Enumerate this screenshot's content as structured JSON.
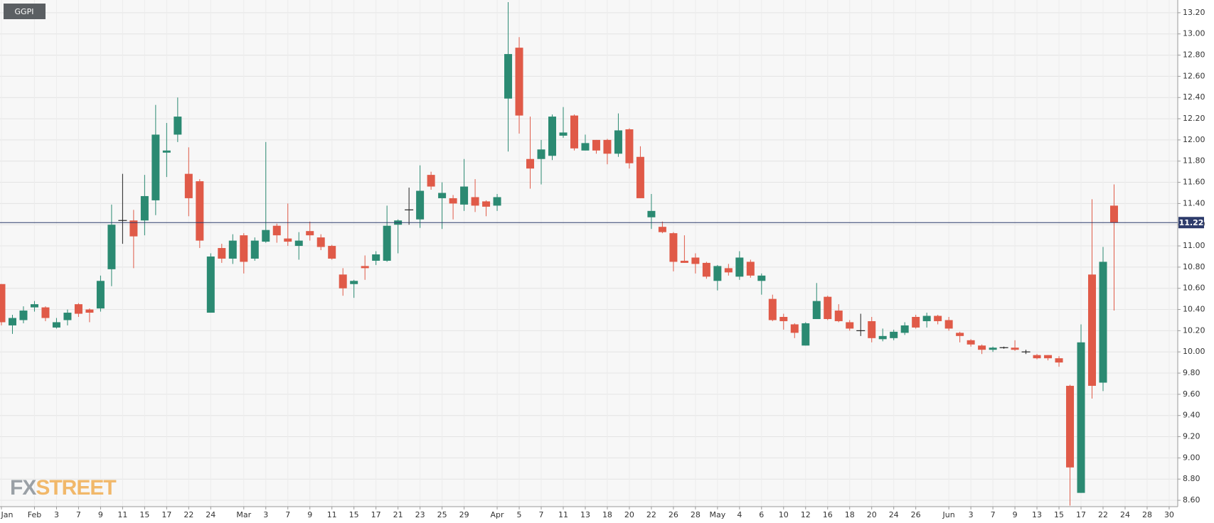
{
  "chart_data": {
    "type": "candlestick",
    "symbol": "GGPI",
    "watermark": [
      "FX",
      "STREET"
    ],
    "categories": [
      "Jan",
      null,
      null,
      "Feb",
      null,
      "3",
      null,
      "7",
      null,
      "9",
      null,
      "11",
      null,
      "15",
      null,
      "17",
      null,
      "22",
      null,
      "24",
      null,
      null,
      "Mar",
      null,
      "3",
      null,
      "7",
      null,
      "9",
      null,
      "11",
      null,
      "15",
      null,
      "17",
      null,
      "21",
      null,
      "23",
      null,
      "25",
      null,
      "29",
      null,
      null,
      "Apr",
      null,
      "5",
      null,
      "7",
      null,
      "11",
      null,
      "13",
      null,
      "18",
      null,
      "20",
      null,
      "22",
      null,
      "26",
      null,
      "28",
      null,
      "May",
      null,
      "4",
      null,
      "6",
      null,
      "10",
      null,
      "12",
      null,
      "16",
      null,
      "18",
      null,
      "20",
      null,
      "24",
      null,
      "26",
      null,
      null,
      "Jun",
      null,
      "3",
      null,
      "7",
      null,
      "9",
      null,
      "13",
      null,
      "15",
      null,
      "17",
      null,
      "22",
      null,
      "24",
      null,
      "28",
      null,
      "30"
    ],
    "open": [
      10.64,
      10.25,
      10.3,
      10.42,
      10.42,
      10.23,
      10.3,
      10.45,
      10.4,
      10.41,
      10.78,
      11.24,
      11.24,
      11.24,
      11.43,
      11.88,
      12.05,
      11.68,
      11.61,
      10.37,
      10.98,
      10.88,
      11.1,
      10.88,
      11.04,
      11.19,
      11.07,
      11.0,
      11.14,
      11.08,
      11.0,
      10.73,
      10.64,
      10.81,
      10.86,
      10.86,
      11.2,
      11.34,
      11.25,
      11.67,
      11.45,
      11.45,
      11.39,
      11.46,
      11.42,
      11.38,
      12.39,
      12.87,
      11.82,
      11.82,
      11.85,
      12.04,
      12.23,
      11.9,
      12.0,
      12.0,
      11.87,
      12.1,
      11.84,
      11.27,
      11.18,
      11.12,
      10.86,
      10.89,
      10.84,
      10.67,
      10.79,
      10.71,
      10.85,
      10.67,
      10.5,
      10.33,
      10.26,
      10.06,
      10.31,
      10.52,
      10.39,
      10.28,
      10.2,
      10.29,
      10.12,
      10.13,
      10.18,
      10.33,
      10.29,
      10.34,
      10.3,
      10.18,
      10.11,
      10.06,
      10.02,
      10.04,
      10.04,
      10.0,
      9.97,
      9.97,
      9.94,
      9.68,
      8.67,
      10.73,
      9.71,
      11.38,
      null,
      null,
      null,
      null,
      null
    ],
    "high": [
      10.64,
      10.35,
      10.43,
      10.48,
      10.43,
      10.32,
      10.4,
      10.46,
      10.41,
      10.72,
      11.39,
      11.68,
      11.34,
      11.67,
      12.33,
      12.16,
      12.4,
      11.93,
      11.63,
      10.93,
      11.02,
      11.11,
      11.12,
      11.08,
      11.98,
      11.21,
      11.4,
      11.13,
      11.23,
      11.11,
      11.01,
      10.79,
      10.68,
      10.91,
      10.95,
      11.38,
      11.25,
      11.55,
      11.76,
      11.7,
      11.6,
      11.48,
      11.82,
      11.63,
      11.43,
      11.49,
      13.3,
      12.97,
      12.22,
      12.0,
      12.24,
      12.31,
      12.24,
      12.05,
      12.0,
      12.01,
      12.25,
      12.11,
      11.94,
      11.49,
      11.23,
      11.13,
      11.1,
      10.93,
      10.85,
      10.82,
      10.83,
      10.95,
      10.87,
      10.74,
      10.54,
      10.36,
      10.27,
      10.28,
      10.65,
      10.53,
      10.45,
      10.3,
      10.36,
      10.33,
      10.22,
      10.21,
      10.28,
      10.35,
      10.37,
      10.35,
      10.33,
      10.19,
      10.12,
      10.07,
      10.05,
      10.05,
      10.11,
      10.02,
      9.98,
      9.97,
      9.96,
      9.69,
      10.26,
      11.44,
      10.99,
      11.58,
      null,
      null,
      null,
      null,
      null
    ],
    "low": [
      10.25,
      10.17,
      10.27,
      10.38,
      10.29,
      10.22,
      10.25,
      10.33,
      10.28,
      10.38,
      10.62,
      11.02,
      10.79,
      11.1,
      11.29,
      11.65,
      11.98,
      11.28,
      10.98,
      10.37,
      10.84,
      10.83,
      10.74,
      10.86,
      11.03,
      11.03,
      11.0,
      10.87,
      11.05,
      10.96,
      10.87,
      10.53,
      10.51,
      10.68,
      10.82,
      10.85,
      10.93,
      11.2,
      11.17,
      11.53,
      11.16,
      11.25,
      11.33,
      11.32,
      11.28,
      11.33,
      11.89,
      12.06,
      11.54,
      11.58,
      11.81,
      12.02,
      11.9,
      11.9,
      11.87,
      11.77,
      11.84,
      11.73,
      11.45,
      11.16,
      11.12,
      10.76,
      10.84,
      10.74,
      10.69,
      10.58,
      10.72,
      10.68,
      10.7,
      10.54,
      10.29,
      10.21,
      10.13,
      10.06,
      10.31,
      10.3,
      10.28,
      10.2,
      10.15,
      10.09,
      10.1,
      10.11,
      10.16,
      10.22,
      10.23,
      10.26,
      10.2,
      10.09,
      10.05,
      9.98,
      10.0,
      10.03,
      10.01,
      9.98,
      9.93,
      9.92,
      9.86,
      8.55,
      8.67,
      9.56,
      9.63,
      10.39,
      null,
      null,
      null,
      null,
      null
    ],
    "close": [
      10.28,
      10.32,
      10.39,
      10.45,
      10.32,
      10.28,
      10.37,
      10.36,
      10.37,
      10.67,
      11.2,
      11.24,
      11.09,
      11.47,
      12.05,
      11.9,
      12.22,
      11.45,
      11.05,
      10.9,
      10.88,
      11.05,
      10.85,
      11.05,
      11.15,
      11.1,
      11.04,
      11.05,
      11.1,
      10.99,
      10.88,
      10.6,
      10.67,
      10.79,
      10.92,
      11.19,
      11.24,
      11.34,
      11.52,
      11.56,
      11.5,
      11.4,
      11.56,
      11.38,
      11.37,
      11.46,
      12.81,
      12.23,
      11.73,
      11.91,
      12.22,
      12.07,
      11.92,
      11.97,
      11.9,
      11.87,
      12.09,
      11.78,
      11.45,
      11.33,
      11.13,
      10.85,
      10.84,
      10.83,
      10.71,
      10.81,
      10.75,
      10.89,
      10.72,
      10.72,
      10.3,
      10.29,
      10.18,
      10.27,
      10.48,
      10.31,
      10.29,
      10.22,
      10.2,
      10.13,
      10.15,
      10.19,
      10.25,
      10.23,
      10.34,
      10.29,
      10.22,
      10.15,
      10.07,
      10.02,
      10.04,
      10.04,
      10.02,
      10.0,
      9.94,
      9.94,
      9.9,
      8.91,
      10.09,
      9.68,
      10.85,
      11.22,
      null,
      null,
      null,
      null,
      null
    ],
    "up_color": "#2b8a72",
    "down_color": "#e05a48",
    "doji_color": "#222222",
    "last_price": {
      "value": 11.22,
      "label": "11.22"
    },
    "last_price_color": "#2d3b6b",
    "ylim": [
      8.54,
      13.32
    ],
    "yticks": [
      {
        "value": 8.6,
        "label": "8.60"
      },
      {
        "value": 8.8,
        "label": "8.80"
      },
      {
        "value": 9.0,
        "label": "9.00"
      },
      {
        "value": 9.2,
        "label": "9.20"
      },
      {
        "value": 9.4,
        "label": "9.40"
      },
      {
        "value": 9.6,
        "label": "9.60"
      },
      {
        "value": 9.8,
        "label": "9.80"
      },
      {
        "value": 10.0,
        "label": "10.00"
      },
      {
        "value": 10.2,
        "label": "10.20"
      },
      {
        "value": 10.4,
        "label": "10.40"
      },
      {
        "value": 10.6,
        "label": "10.60"
      },
      {
        "value": 10.8,
        "label": "10.80"
      },
      {
        "value": 11.0,
        "label": "11.00"
      },
      {
        "value": 11.2,
        "label": "11.20"
      },
      {
        "value": 11.4,
        "label": "11.40"
      },
      {
        "value": 11.6,
        "label": "11.60"
      },
      {
        "value": 11.8,
        "label": "11.80"
      },
      {
        "value": 12.0,
        "label": "12.00"
      },
      {
        "value": 12.2,
        "label": "12.20"
      },
      {
        "value": 12.4,
        "label": "12.40"
      },
      {
        "value": 12.6,
        "label": "12.60"
      },
      {
        "value": 12.8,
        "label": "12.80"
      },
      {
        "value": 13.0,
        "label": "13.00"
      },
      {
        "value": 13.2,
        "label": "13.20"
      }
    ],
    "grid": true
  }
}
